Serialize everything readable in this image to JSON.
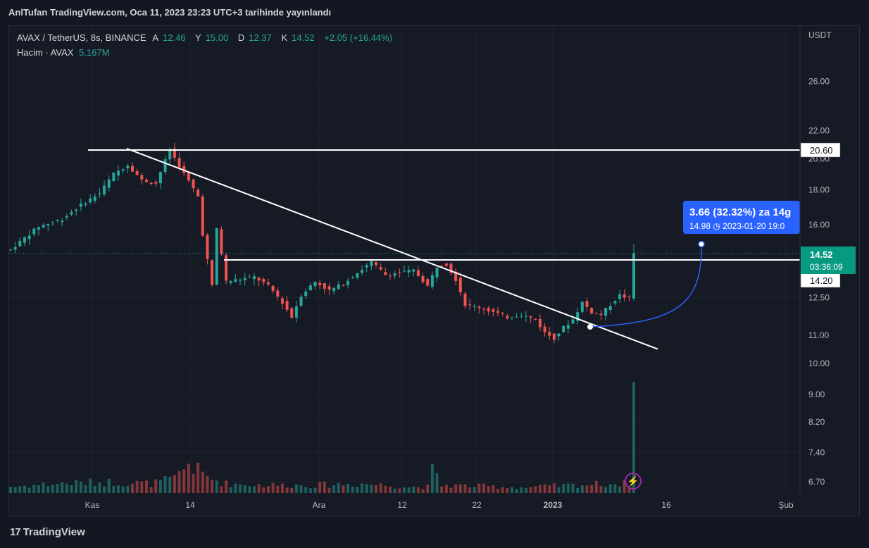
{
  "caption": "AnlTufan TradingView.com, Oca 11, 2023 23:23 UTC+3 tarihinde yayınlandı",
  "legend": {
    "symbol": "AVAX / TetherUS, 8s, BINANCE",
    "o_label": "A",
    "o_value": "12.46",
    "h_label": "Y",
    "h_value": "15.00",
    "l_label": "D",
    "l_value": "12.37",
    "c_label": "K",
    "c_value": "14.52",
    "change": "+2.05 (+16.44%)",
    "volume_label": "Hacim · AVAX",
    "volume_value": "5.167M"
  },
  "footer": {
    "logo_mark": "17",
    "logo_text": "TradingView"
  },
  "flash_icon": "lightning-icon",
  "colors": {
    "up": "#26a69a",
    "down": "#ef5350",
    "annotation": "#2962ff",
    "background": "#131722"
  },
  "chart_data": {
    "type": "candlestick",
    "currency_label": "USDT",
    "y_scale": "log",
    "ylim": [
      6.5,
      30
    ],
    "y_ticks": [
      "26.00",
      "22.00",
      "20.00",
      "18.00",
      "16.00",
      "12.50",
      "11.00",
      "10.00",
      "9.00",
      "8.20",
      "7.40",
      "6.70"
    ],
    "x_ticks": [
      "Kas",
      "14",
      "Ara",
      "12",
      "22",
      "2023",
      "16",
      "Şub"
    ],
    "grid": true,
    "price_labels": [
      {
        "text": "20.60",
        "kind": "horizontal-level"
      },
      {
        "text": "14.20",
        "kind": "horizontal-level"
      }
    ],
    "last_price": {
      "price": "14.52",
      "countdown": "03:36:09"
    },
    "projection_label": {
      "line1": "3.66 (32.32%) za 14g",
      "line2_price": "14.98",
      "line2_date": "2023-01-20",
      "line2_time": "19:0"
    },
    "trendlines": [
      {
        "name": "resistance-20.60",
        "from": 20.6,
        "to": 20.6
      },
      {
        "name": "level-14.20",
        "from": 14.2,
        "to": 14.2
      },
      {
        "name": "descending-trendline",
        "from": 20.7,
        "to": 10.5
      }
    ],
    "price_path": [
      [
        0,
        14.7
      ],
      [
        6,
        15.9
      ],
      [
        11,
        16.3
      ],
      [
        15,
        17.1
      ],
      [
        19,
        17.8
      ],
      [
        22,
        19.0
      ],
      [
        25,
        19.6
      ],
      [
        28,
        18.6
      ],
      [
        31,
        18.4
      ],
      [
        34,
        20.6
      ],
      [
        37,
        19.0
      ],
      [
        40,
        17.6
      ],
      [
        41,
        15.5
      ],
      [
        42,
        14.2
      ],
      [
        43,
        13.0
      ],
      [
        44,
        15.8
      ],
      [
        46,
        13.2
      ],
      [
        49,
        13.3
      ],
      [
        52,
        13.4
      ],
      [
        55,
        13.0
      ],
      [
        58,
        12.3
      ],
      [
        60,
        11.7
      ],
      [
        62,
        12.6
      ],
      [
        65,
        13.2
      ],
      [
        68,
        12.8
      ],
      [
        71,
        13.1
      ],
      [
        74,
        13.6
      ],
      [
        77,
        14.1
      ],
      [
        80,
        13.5
      ],
      [
        83,
        13.6
      ],
      [
        86,
        13.7
      ],
      [
        89,
        13.0
      ],
      [
        91,
        13.9
      ],
      [
        93,
        14.0
      ],
      [
        95,
        13.3
      ],
      [
        97,
        12.2
      ],
      [
        100,
        12.1
      ],
      [
        103,
        11.9
      ],
      [
        106,
        11.7
      ],
      [
        109,
        11.8
      ],
      [
        112,
        11.6
      ],
      [
        114,
        11.1
      ],
      [
        116,
        10.9
      ],
      [
        118,
        11.3
      ],
      [
        120,
        11.6
      ],
      [
        122,
        12.3
      ],
      [
        124,
        11.9
      ],
      [
        126,
        11.8
      ],
      [
        128,
        12.2
      ],
      [
        130,
        12.6
      ],
      [
        132,
        12.46
      ],
      [
        133,
        14.52
      ]
    ],
    "volume_path": [
      [
        0,
        0.2
      ],
      [
        10,
        0.3
      ],
      [
        20,
        0.35
      ],
      [
        30,
        0.3
      ],
      [
        35,
        0.45
      ],
      [
        38,
        0.95
      ],
      [
        40,
        0.7
      ],
      [
        42,
        0.5
      ],
      [
        46,
        0.3
      ],
      [
        55,
        0.25
      ],
      [
        65,
        0.25
      ],
      [
        75,
        0.3
      ],
      [
        85,
        0.2
      ],
      [
        89,
        0.2
      ],
      [
        90,
        0.72
      ],
      [
        92,
        0.25
      ],
      [
        100,
        0.22
      ],
      [
        110,
        0.18
      ],
      [
        120,
        0.25
      ],
      [
        128,
        0.3
      ],
      [
        132,
        0.3
      ],
      [
        133,
        3.5
      ]
    ]
  }
}
